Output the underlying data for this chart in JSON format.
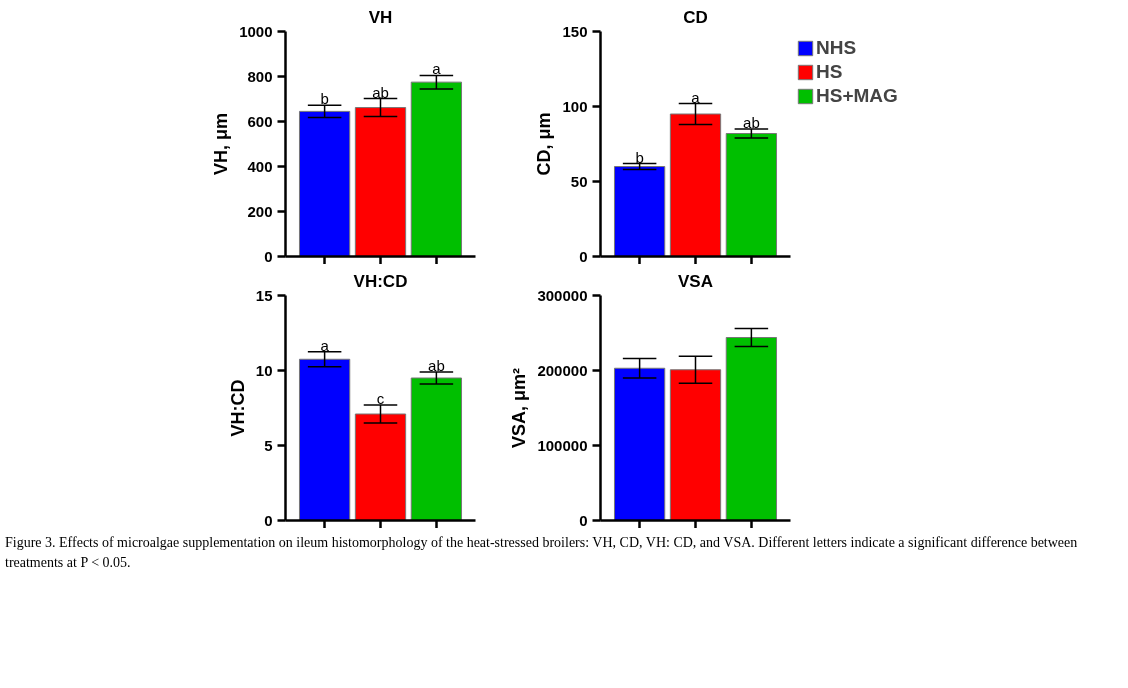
{
  "chart_data": [
    {
      "type": "bar",
      "title": "VH",
      "ylabel": "VH, μm",
      "categories": [
        null
      ],
      "ylim": [
        0,
        1000
      ],
      "yticks": [
        0,
        200,
        400,
        600,
        800,
        1000
      ],
      "grid": false,
      "legend": false,
      "series": [
        {
          "color": "#0000ff",
          "values": [
            645
          ],
          "errors": [
            27
          ],
          "value_labels": [
            "b"
          ]
        },
        {
          "color": "#ff0000",
          "values": [
            662
          ],
          "errors": [
            40
          ],
          "value_labels": [
            "ab"
          ]
        },
        {
          "color": "#00bf00",
          "values": [
            775
          ],
          "errors": [
            30
          ],
          "value_labels": [
            "a"
          ]
        }
      ]
    },
    {
      "type": "bar",
      "title": "CD",
      "ylabel": "CD, μm",
      "categories": [
        null
      ],
      "ylim": [
        0,
        150
      ],
      "yticks": [
        0,
        50,
        100,
        150
      ],
      "grid": false,
      "legend": "right",
      "series": [
        {
          "name": "NHS",
          "color": "#0000ff",
          "values": [
            60
          ],
          "errors": [
            2
          ],
          "value_labels": [
            "b"
          ]
        },
        {
          "name": "HS",
          "color": "#ff0000",
          "values": [
            95
          ],
          "errors": [
            7
          ],
          "value_labels": [
            "a"
          ]
        },
        {
          "name": "HS+MAG",
          "color": "#00bf00",
          "values": [
            82
          ],
          "errors": [
            3
          ],
          "value_labels": [
            "ab"
          ]
        }
      ]
    },
    {
      "type": "bar",
      "title": "VH:CD",
      "ylabel": "VH:CD",
      "categories": [
        null
      ],
      "ylim": [
        0,
        15
      ],
      "yticks": [
        0,
        5,
        10,
        15
      ],
      "grid": false,
      "legend": false,
      "series": [
        {
          "color": "#0000ff",
          "values": [
            10.75
          ],
          "errors": [
            0.5
          ],
          "value_labels": [
            "a"
          ]
        },
        {
          "color": "#ff0000",
          "values": [
            7.1
          ],
          "errors": [
            0.6
          ],
          "value_labels": [
            "c"
          ]
        },
        {
          "color": "#00bf00",
          "values": [
            9.5
          ],
          "errors": [
            0.4
          ],
          "value_labels": [
            "ab"
          ]
        }
      ]
    },
    {
      "type": "bar",
      "title": "VSA",
      "ylabel": "VSA, μm²",
      "categories": [
        null
      ],
      "ylim": [
        0,
        300000
      ],
      "yticks": [
        0,
        100000,
        200000,
        300000
      ],
      "grid": false,
      "legend": false,
      "annotations": [
        "Figure 3.  Effects of microalgae supplementation on ileum histomorphology of the heat-stressed broilers: VH, CD, VH: CD, and VSA. Different letters indicate a significant difference between treatments at P < 0.05."
      ],
      "series": [
        {
          "color": "#0000ff",
          "values": [
            203000
          ],
          "errors": [
            13000
          ]
        },
        {
          "color": "#ff0000",
          "values": [
            201000
          ],
          "errors": [
            18000
          ]
        },
        {
          "color": "#00bf00",
          "values": [
            244000
          ],
          "errors": [
            12000
          ]
        }
      ]
    }
  ]
}
